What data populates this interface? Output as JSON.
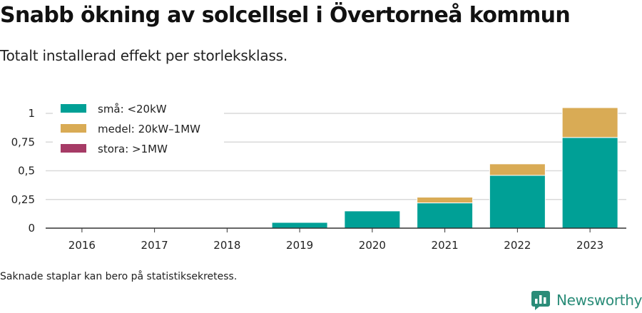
{
  "header": {
    "title": "Snabb ökning av solcellsel i Övertorneå kommun",
    "subtitle": "Totalt installerad effekt per storleksklass."
  },
  "footer": {
    "note": "Saknade staplar kan bero på statistiksekretess.",
    "brand": "Newsworthy"
  },
  "colors": {
    "small": "#00a096",
    "medium": "#d9ab55",
    "large": "#a63b66",
    "grid": "#d9d9d9",
    "brand": "#2a8c78"
  },
  "chart_data": {
    "type": "bar",
    "stacked": true,
    "categories": [
      "2016",
      "2017",
      "2018",
      "2019",
      "2020",
      "2021",
      "2022",
      "2023"
    ],
    "series": [
      {
        "name": "små: <20kW",
        "color": "#00a096",
        "values": [
          0,
          0,
          0,
          0.05,
          0.15,
          0.22,
          0.46,
          0.79
        ]
      },
      {
        "name": "medel: 20kW–1MW",
        "color": "#d9ab55",
        "values": [
          0,
          0,
          0,
          0,
          0,
          0.05,
          0.1,
          0.26
        ]
      },
      {
        "name": "stora: >1MW",
        "color": "#a63b66",
        "values": [
          0,
          0,
          0,
          0,
          0,
          0,
          0,
          0
        ]
      }
    ],
    "yticks": [
      0,
      0.25,
      0.5,
      0.75,
      1
    ],
    "ytick_labels": [
      "0",
      "0,25",
      "0,5",
      "0,75",
      "1"
    ],
    "ylim": [
      0,
      1.1
    ],
    "grid": true,
    "legend_position": "top-left"
  }
}
